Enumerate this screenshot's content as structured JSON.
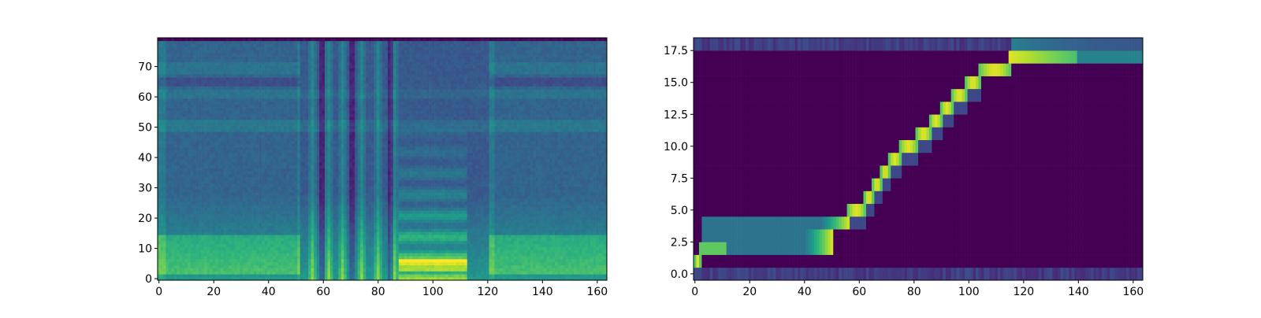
{
  "colors": {
    "viridis": [
      "#440154",
      "#482878",
      "#3e4989",
      "#31688e",
      "#26828e",
      "#1f9e89",
      "#35b779",
      "#6ece58",
      "#b5de2b",
      "#fde725"
    ]
  },
  "chart_data": [
    {
      "type": "heatmap",
      "title": "",
      "xlabel": "",
      "ylabel": "",
      "colormap": "viridis",
      "xlim": [
        -0.5,
        163.5
      ],
      "ylim": [
        -0.5,
        79.5
      ],
      "xticks": [
        "0",
        "20",
        "40",
        "60",
        "80",
        "100",
        "120",
        "140",
        "160"
      ],
      "yticks": [
        "0",
        "10",
        "20",
        "30",
        "40",
        "50",
        "60",
        "70"
      ],
      "description_rows": 80,
      "silence_regions": [
        [
          0,
          52
        ],
        [
          120,
          163
        ]
      ],
      "voiced_regions": [
        [
          52,
          120
        ]
      ],
      "energy_bands": [
        3,
        10,
        18,
        50,
        62,
        70
      ]
    },
    {
      "type": "heatmap",
      "title": "",
      "xlabel": "",
      "ylabel": "",
      "colormap": "viridis",
      "xlim": [
        -0.5,
        163.5
      ],
      "ylim": [
        -0.5,
        18.5
      ],
      "xticks": [
        "0",
        "20",
        "40",
        "60",
        "80",
        "100",
        "120",
        "140",
        "160"
      ],
      "yticks": [
        "0.0",
        "2.5",
        "5.0",
        "7.5",
        "10.0",
        "12.5",
        "15.0",
        "17.5"
      ],
      "alignment_path": [
        {
          "row": 1,
          "start": 0,
          "end": 2
        },
        {
          "row": 2,
          "start": 2,
          "end": 50
        },
        {
          "row": 3,
          "start": 3,
          "end": 50
        },
        {
          "row": 4,
          "start": 3,
          "end": 56
        },
        {
          "row": 5,
          "start": 56,
          "end": 62
        },
        {
          "row": 6,
          "start": 62,
          "end": 65
        },
        {
          "row": 7,
          "start": 65,
          "end": 68
        },
        {
          "row": 8,
          "start": 68,
          "end": 71
        },
        {
          "row": 9,
          "start": 71,
          "end": 75
        },
        {
          "row": 10,
          "start": 75,
          "end": 81
        },
        {
          "row": 11,
          "start": 81,
          "end": 86
        },
        {
          "row": 12,
          "start": 86,
          "end": 90
        },
        {
          "row": 13,
          "start": 90,
          "end": 94
        },
        {
          "row": 14,
          "start": 94,
          "end": 99
        },
        {
          "row": 15,
          "start": 99,
          "end": 104
        },
        {
          "row": 16,
          "start": 104,
          "end": 115
        },
        {
          "row": 17,
          "start": 115,
          "end": 163
        }
      ]
    }
  ]
}
